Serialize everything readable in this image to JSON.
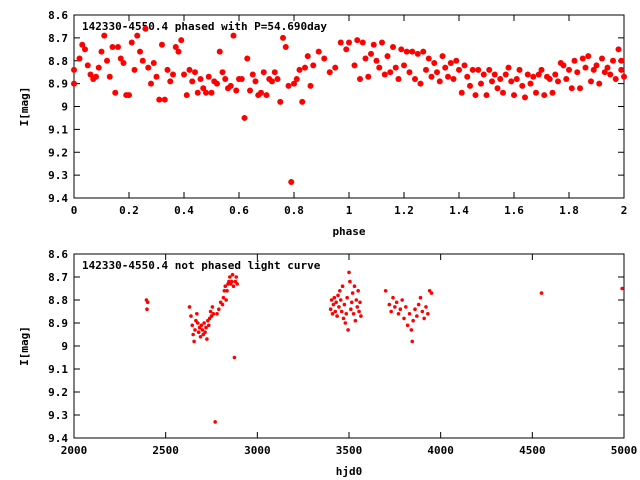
{
  "chart_data": [
    {
      "id": "phased",
      "type": "scatter",
      "title": "142330-4550.4 phased with P=54.690day",
      "xlabel": "phase",
      "ylabel": "I[mag]",
      "xlim": [
        0,
        2
      ],
      "ylim": [
        9.4,
        8.6
      ],
      "y_inverted": true,
      "xticks": [
        0,
        0.2,
        0.4,
        0.6,
        0.8,
        1,
        1.2,
        1.4,
        1.6,
        1.8,
        2
      ],
      "xtick_labels": [
        "0",
        "0.2",
        "0.4",
        "0.6",
        "0.8",
        "1",
        "1.2",
        "1.4",
        "1.6",
        "1.8",
        "2"
      ],
      "yticks": [
        8.6,
        8.7,
        8.8,
        8.9,
        9,
        9.1,
        9.2,
        9.3,
        9.4
      ],
      "ytick_labels": [
        "8.6",
        "8.7",
        "8.8",
        "8.9",
        "9",
        "9.1",
        "9.2",
        "9.3",
        "9.4"
      ],
      "marker_color": "#ff0000",
      "marker": "large",
      "grid": false,
      "points": [
        [
          0.0,
          8.84
        ],
        [
          0.0,
          8.9
        ],
        [
          0.02,
          8.79
        ],
        [
          0.03,
          8.73
        ],
        [
          0.04,
          8.75
        ],
        [
          0.05,
          8.82
        ],
        [
          0.06,
          8.86
        ],
        [
          0.07,
          8.88
        ],
        [
          0.08,
          8.87
        ],
        [
          0.09,
          8.83
        ],
        [
          0.1,
          8.76
        ],
        [
          0.11,
          8.69
        ],
        [
          0.12,
          8.8
        ],
        [
          0.13,
          8.87
        ],
        [
          0.14,
          8.74
        ],
        [
          0.15,
          8.94
        ],
        [
          0.16,
          8.74
        ],
        [
          0.17,
          8.79
        ],
        [
          0.18,
          8.81
        ],
        [
          0.19,
          8.95
        ],
        [
          0.2,
          8.95
        ],
        [
          0.21,
          8.72
        ],
        [
          0.22,
          8.84
        ],
        [
          0.23,
          8.69
        ],
        [
          0.24,
          8.76
        ],
        [
          0.25,
          8.8
        ],
        [
          0.26,
          8.66
        ],
        [
          0.27,
          8.83
        ],
        [
          0.28,
          8.9
        ],
        [
          0.29,
          8.81
        ],
        [
          0.3,
          8.87
        ],
        [
          0.31,
          8.97
        ],
        [
          0.32,
          8.73
        ],
        [
          0.33,
          8.97
        ],
        [
          0.34,
          8.84
        ],
        [
          0.35,
          8.89
        ],
        [
          0.36,
          8.86
        ],
        [
          0.37,
          8.74
        ],
        [
          0.38,
          8.76
        ],
        [
          0.39,
          8.71
        ],
        [
          0.4,
          8.86
        ],
        [
          0.41,
          8.95
        ],
        [
          0.42,
          8.84
        ],
        [
          0.43,
          8.89
        ],
        [
          0.44,
          8.85
        ],
        [
          0.45,
          8.94
        ],
        [
          0.46,
          8.88
        ],
        [
          0.47,
          8.92
        ],
        [
          0.48,
          8.94
        ],
        [
          0.49,
          8.87
        ],
        [
          0.5,
          8.94
        ],
        [
          0.51,
          8.89
        ],
        [
          0.52,
          8.9
        ],
        [
          0.53,
          8.76
        ],
        [
          0.54,
          8.85
        ],
        [
          0.55,
          8.88
        ],
        [
          0.56,
          8.92
        ],
        [
          0.57,
          8.91
        ],
        [
          0.58,
          8.69
        ],
        [
          0.59,
          8.93
        ],
        [
          0.6,
          8.88
        ],
        [
          0.61,
          8.88
        ],
        [
          0.62,
          9.05
        ],
        [
          0.63,
          8.79
        ],
        [
          0.64,
          8.93
        ],
        [
          0.65,
          8.86
        ],
        [
          0.66,
          8.89
        ],
        [
          0.67,
          8.95
        ],
        [
          0.68,
          8.94
        ],
        [
          0.69,
          8.85
        ],
        [
          0.7,
          8.95
        ],
        [
          0.71,
          8.88
        ],
        [
          0.72,
          8.89
        ],
        [
          0.73,
          8.85
        ],
        [
          0.74,
          8.88
        ],
        [
          0.75,
          8.98
        ],
        [
          0.76,
          8.7
        ],
        [
          0.77,
          8.74
        ],
        [
          0.78,
          8.91
        ],
        [
          0.79,
          9.33
        ],
        [
          0.8,
          8.9
        ],
        [
          0.81,
          8.88
        ],
        [
          0.82,
          8.84
        ],
        [
          0.83,
          8.98
        ],
        [
          0.84,
          8.83
        ],
        [
          0.85,
          8.78
        ],
        [
          0.86,
          8.91
        ],
        [
          0.87,
          8.82
        ],
        [
          0.89,
          8.76
        ],
        [
          0.91,
          8.79
        ],
        [
          0.93,
          8.85
        ],
        [
          0.95,
          8.83
        ],
        [
          0.97,
          8.72
        ],
        [
          0.99,
          8.75
        ],
        [
          1.0,
          8.72
        ],
        [
          1.02,
          8.82
        ],
        [
          1.03,
          8.71
        ],
        [
          1.04,
          8.88
        ],
        [
          1.05,
          8.72
        ],
        [
          1.06,
          8.79
        ],
        [
          1.07,
          8.87
        ],
        [
          1.08,
          8.77
        ],
        [
          1.09,
          8.73
        ],
        [
          1.1,
          8.8
        ],
        [
          1.11,
          8.83
        ],
        [
          1.12,
          8.72
        ],
        [
          1.13,
          8.86
        ],
        [
          1.14,
          8.78
        ],
        [
          1.15,
          8.85
        ],
        [
          1.16,
          8.74
        ],
        [
          1.17,
          8.83
        ],
        [
          1.18,
          8.88
        ],
        [
          1.19,
          8.75
        ],
        [
          1.2,
          8.82
        ],
        [
          1.21,
          8.76
        ],
        [
          1.22,
          8.85
        ],
        [
          1.23,
          8.76
        ],
        [
          1.24,
          8.88
        ],
        [
          1.25,
          8.77
        ],
        [
          1.26,
          8.9
        ],
        [
          1.27,
          8.76
        ],
        [
          1.28,
          8.84
        ],
        [
          1.29,
          8.79
        ],
        [
          1.3,
          8.87
        ],
        [
          1.31,
          8.81
        ],
        [
          1.32,
          8.85
        ],
        [
          1.33,
          8.89
        ],
        [
          1.34,
          8.78
        ],
        [
          1.35,
          8.83
        ],
        [
          1.36,
          8.87
        ],
        [
          1.37,
          8.81
        ],
        [
          1.38,
          8.88
        ],
        [
          1.39,
          8.8
        ],
        [
          1.4,
          8.84
        ],
        [
          1.41,
          8.94
        ],
        [
          1.42,
          8.82
        ],
        [
          1.43,
          8.87
        ],
        [
          1.44,
          8.91
        ],
        [
          1.45,
          8.84
        ],
        [
          1.46,
          8.95
        ],
        [
          1.47,
          8.84
        ],
        [
          1.48,
          8.9
        ],
        [
          1.49,
          8.86
        ],
        [
          1.5,
          8.95
        ],
        [
          1.51,
          8.84
        ],
        [
          1.52,
          8.89
        ],
        [
          1.53,
          8.86
        ],
        [
          1.54,
          8.92
        ],
        [
          1.55,
          8.88
        ],
        [
          1.56,
          8.94
        ],
        [
          1.57,
          8.86
        ],
        [
          1.58,
          8.83
        ],
        [
          1.59,
          8.89
        ],
        [
          1.6,
          8.95
        ],
        [
          1.61,
          8.88
        ],
        [
          1.62,
          8.84
        ],
        [
          1.63,
          8.91
        ],
        [
          1.64,
          8.96
        ],
        [
          1.65,
          8.86
        ],
        [
          1.66,
          8.9
        ],
        [
          1.67,
          8.87
        ],
        [
          1.68,
          8.94
        ],
        [
          1.69,
          8.86
        ],
        [
          1.7,
          8.84
        ],
        [
          1.71,
          8.95
        ],
        [
          1.72,
          8.87
        ],
        [
          1.73,
          8.88
        ],
        [
          1.74,
          8.94
        ],
        [
          1.75,
          8.86
        ],
        [
          1.76,
          8.89
        ],
        [
          1.77,
          8.81
        ],
        [
          1.78,
          8.82
        ],
        [
          1.79,
          8.88
        ],
        [
          1.8,
          8.84
        ],
        [
          1.81,
          8.92
        ],
        [
          1.82,
          8.8
        ],
        [
          1.83,
          8.85
        ],
        [
          1.84,
          8.92
        ],
        [
          1.85,
          8.79
        ],
        [
          1.86,
          8.83
        ],
        [
          1.87,
          8.78
        ],
        [
          1.88,
          8.89
        ],
        [
          1.89,
          8.84
        ],
        [
          1.9,
          8.82
        ],
        [
          1.91,
          8.9
        ],
        [
          1.92,
          8.79
        ],
        [
          1.93,
          8.85
        ],
        [
          1.94,
          8.83
        ],
        [
          1.95,
          8.86
        ],
        [
          1.96,
          8.8
        ],
        [
          1.97,
          8.88
        ],
        [
          1.98,
          8.75
        ],
        [
          1.99,
          8.84
        ],
        [
          1.99,
          8.8
        ],
        [
          2.0,
          8.87
        ]
      ]
    },
    {
      "id": "unphased",
      "type": "scatter",
      "title": "142330-4550.4 not phased light curve",
      "xlabel": "hjd0",
      "ylabel": "I[mag]",
      "xlim": [
        2000,
        5000
      ],
      "ylim": [
        9.4,
        8.6
      ],
      "y_inverted": true,
      "xticks": [
        2000,
        2500,
        3000,
        3500,
        4000,
        4500,
        5000
      ],
      "xtick_labels": [
        "2000",
        "2500",
        "3000",
        "3500",
        "4000",
        "4500",
        "5000"
      ],
      "yticks": [
        8.6,
        8.7,
        8.8,
        8.9,
        9,
        9.1,
        9.2,
        9.3,
        9.4
      ],
      "ytick_labels": [
        "8.6",
        "8.7",
        "8.8",
        "8.9",
        "9",
        "9.1",
        "9.2",
        "9.3",
        "9.4"
      ],
      "marker_color": "#ff0000",
      "marker": "small",
      "grid": false,
      "points": [
        [
          2395,
          8.8
        ],
        [
          2398,
          8.84
        ],
        [
          2402,
          8.81
        ],
        [
          2630,
          8.83
        ],
        [
          2638,
          8.87
        ],
        [
          2645,
          8.91
        ],
        [
          2650,
          8.95
        ],
        [
          2655,
          8.98
        ],
        [
          2660,
          8.93
        ],
        [
          2665,
          8.89
        ],
        [
          2670,
          8.86
        ],
        [
          2675,
          8.9
        ],
        [
          2680,
          8.94
        ],
        [
          2685,
          8.92
        ],
        [
          2690,
          8.96
        ],
        [
          2695,
          8.91
        ],
        [
          2700,
          8.93
        ],
        [
          2705,
          8.95
        ],
        [
          2710,
          8.9
        ],
        [
          2715,
          8.94
        ],
        [
          2720,
          8.92
        ],
        [
          2725,
          8.97
        ],
        [
          2730,
          8.89
        ],
        [
          2735,
          8.91
        ],
        [
          2740,
          8.88
        ],
        [
          2745,
          8.85
        ],
        [
          2750,
          8.87
        ],
        [
          2755,
          8.83
        ],
        [
          2760,
          8.86
        ],
        [
          2770,
          9.33
        ],
        [
          2780,
          8.86
        ],
        [
          2790,
          8.84
        ],
        [
          2800,
          8.81
        ],
        [
          2810,
          8.82
        ],
        [
          2815,
          8.79
        ],
        [
          2820,
          8.76
        ],
        [
          2825,
          8.74
        ],
        [
          2830,
          8.8
        ],
        [
          2835,
          8.76
        ],
        [
          2840,
          8.73
        ],
        [
          2845,
          8.72
        ],
        [
          2850,
          8.7
        ],
        [
          2855,
          8.73
        ],
        [
          2860,
          8.72
        ],
        [
          2865,
          8.69
        ],
        [
          2870,
          8.74
        ],
        [
          2875,
          9.05
        ],
        [
          2880,
          8.72
        ],
        [
          2885,
          8.7
        ],
        [
          2890,
          8.73
        ],
        [
          3400,
          8.84
        ],
        [
          3405,
          8.8
        ],
        [
          3410,
          8.86
        ],
        [
          3415,
          8.82
        ],
        [
          3420,
          8.79
        ],
        [
          3425,
          8.85
        ],
        [
          3430,
          8.81
        ],
        [
          3435,
          8.87
        ],
        [
          3440,
          8.78
        ],
        [
          3445,
          8.83
        ],
        [
          3450,
          8.76
        ],
        [
          3455,
          8.8
        ],
        [
          3460,
          8.85
        ],
        [
          3465,
          8.74
        ],
        [
          3470,
          8.88
        ],
        [
          3475,
          8.82
        ],
        [
          3480,
          8.9
        ],
        [
          3485,
          8.86
        ],
        [
          3490,
          8.79
        ],
        [
          3495,
          8.93
        ],
        [
          3500,
          8.68
        ],
        [
          3505,
          8.72
        ],
        [
          3510,
          8.84
        ],
        [
          3515,
          8.81
        ],
        [
          3520,
          8.77
        ],
        [
          3525,
          8.86
        ],
        [
          3530,
          8.74
        ],
        [
          3535,
          8.89
        ],
        [
          3540,
          8.8
        ],
        [
          3545,
          8.83
        ],
        [
          3550,
          8.76
        ],
        [
          3555,
          8.85
        ],
        [
          3560,
          8.81
        ],
        [
          3565,
          8.87
        ],
        [
          3700,
          8.76
        ],
        [
          3720,
          8.82
        ],
        [
          3730,
          8.85
        ],
        [
          3740,
          8.79
        ],
        [
          3750,
          8.83
        ],
        [
          3760,
          8.81
        ],
        [
          3770,
          8.86
        ],
        [
          3780,
          8.84
        ],
        [
          3790,
          8.8
        ],
        [
          3800,
          8.88
        ],
        [
          3810,
          8.83
        ],
        [
          3820,
          8.91
        ],
        [
          3830,
          8.86
        ],
        [
          3840,
          8.93
        ],
        [
          3845,
          8.98
        ],
        [
          3850,
          8.89
        ],
        [
          3860,
          8.84
        ],
        [
          3870,
          8.87
        ],
        [
          3880,
          8.82
        ],
        [
          3890,
          8.79
        ],
        [
          3900,
          8.85
        ],
        [
          3910,
          8.88
        ],
        [
          3920,
          8.83
        ],
        [
          3930,
          8.86
        ],
        [
          3940,
          8.76
        ],
        [
          3950,
          8.77
        ],
        [
          4550,
          8.77
        ],
        [
          4990,
          8.75
        ]
      ]
    }
  ]
}
